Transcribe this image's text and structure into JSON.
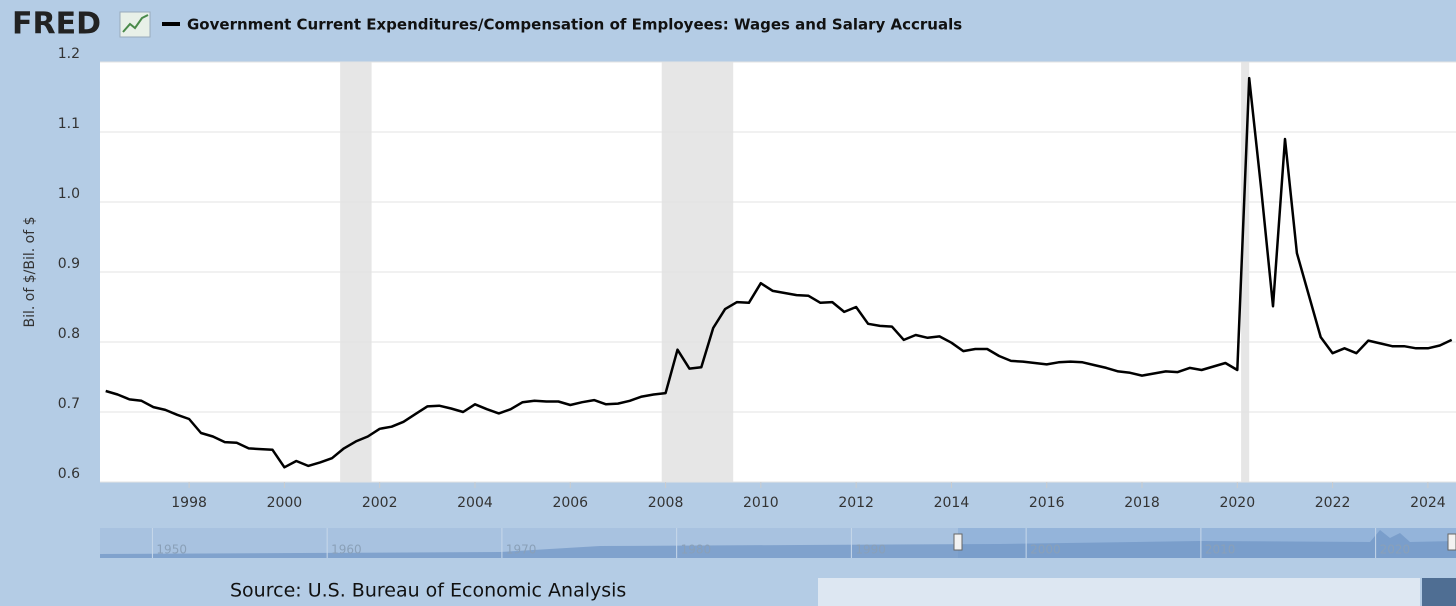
{
  "chart_data": {
    "type": "line",
    "brand": "FRED",
    "title": "Government Current Expenditures/Compensation of Employees: Wages and Salary Accruals",
    "y_label": "Bil. of $/Bil. of $",
    "source": "Source: U.S. Bureau of Economic Analysis",
    "xlim": [
      1996.13,
      2024.59
    ],
    "ylim": [
      0.6,
      1.2
    ],
    "xticks": [
      1998,
      2000,
      2002,
      2004,
      2006,
      2008,
      2010,
      2012,
      2014,
      2016,
      2018,
      2020,
      2022,
      2024
    ],
    "yticks": [
      0.6,
      0.7,
      0.8,
      0.9,
      {
        "value": 1,
        "label": "1.0"
      },
      1.1,
      1.2
    ],
    "grid": true,
    "recessions": [
      [
        2001.17,
        2001.83
      ],
      [
        2007.92,
        2009.42
      ],
      [
        2020.08,
        2020.25
      ]
    ],
    "recession_color": "#e6e6e6",
    "navigator_ticks": [
      1950,
      1960,
      1970,
      1980,
      1990,
      2000,
      2010,
      2020
    ],
    "x": [
      1996.25,
      1996.5,
      1996.75,
      1997,
      1997.25,
      1997.5,
      1997.75,
      1998,
      1998.25,
      1998.5,
      1998.75,
      1999,
      1999.25,
      1999.5,
      1999.75,
      2000,
      2000.25,
      2000.5,
      2000.75,
      2001,
      2001.25,
      2001.5,
      2001.75,
      2002,
      2002.25,
      2002.5,
      2002.75,
      2003,
      2003.25,
      2003.5,
      2003.75,
      2004,
      2004.25,
      2004.5,
      2004.75,
      2005,
      2005.25,
      2005.5,
      2005.75,
      2006,
      2006.25,
      2006.5,
      2006.75,
      2007,
      2007.25,
      2007.5,
      2007.75,
      2008,
      2008.25,
      2008.5,
      2008.75,
      2009,
      2009.25,
      2009.5,
      2009.75,
      2010,
      2010.25,
      2010.5,
      2010.75,
      2011,
      2011.25,
      2011.5,
      2011.75,
      2012,
      2012.25,
      2012.5,
      2012.75,
      2013,
      2013.25,
      2013.5,
      2013.75,
      2014,
      2014.25,
      2014.5,
      2014.75,
      2015,
      2015.25,
      2015.5,
      2015.75,
      2016,
      2016.25,
      2016.5,
      2016.75,
      2017,
      2017.25,
      2017.5,
      2017.75,
      2018,
      2018.25,
      2018.5,
      2018.75,
      2019,
      2019.25,
      2019.5,
      2019.75,
      2020,
      2020.25,
      2020.5,
      2020.75,
      2021,
      2021.25,
      2021.5,
      2021.75,
      2022,
      2022.25,
      2022.5,
      2022.75,
      2023,
      2023.25,
      2023.5,
      2023.75,
      2024,
      2024.25,
      2024.5
    ],
    "series": [
      {
        "name": "Government Current Expenditures/Compensation of Employees: Wages and Salary Accruals",
        "color": "#000000",
        "values": [
          0.73,
          0.725,
          0.718,
          0.716,
          0.707,
          0.703,
          0.696,
          0.69,
          0.67,
          0.665,
          0.657,
          0.656,
          0.648,
          0.647,
          0.646,
          0.621,
          0.63,
          0.623,
          0.628,
          0.634,
          0.648,
          0.658,
          0.665,
          0.676,
          0.679,
          0.686,
          0.697,
          0.708,
          0.709,
          0.705,
          0.7,
          0.711,
          0.704,
          0.698,
          0.704,
          0.714,
          0.716,
          0.715,
          0.715,
          0.71,
          0.714,
          0.717,
          0.711,
          0.712,
          0.716,
          0.722,
          0.725,
          0.727,
          0.789,
          0.762,
          0.764,
          0.82,
          0.847,
          0.857,
          0.856,
          0.884,
          0.873,
          0.87,
          0.867,
          0.866,
          0.856,
          0.857,
          0.843,
          0.85,
          0.826,
          0.823,
          0.822,
          0.803,
          0.81,
          0.806,
          0.808,
          0.799,
          0.787,
          0.79,
          0.79,
          0.78,
          0.773,
          0.772,
          0.77,
          0.768,
          0.771,
          0.772,
          0.771,
          0.767,
          0.763,
          0.758,
          0.756,
          0.752,
          0.755,
          0.758,
          0.757,
          0.763,
          0.76,
          0.765,
          0.77,
          0.76,
          1.177,
          1.02,
          0.851,
          1.09,
          0.927,
          0.867,
          0.807,
          0.784,
          0.791,
          0.784,
          0.802,
          0.798,
          0.794,
          0.794,
          0.791,
          0.791,
          0.795,
          0.803
        ]
      }
    ]
  }
}
